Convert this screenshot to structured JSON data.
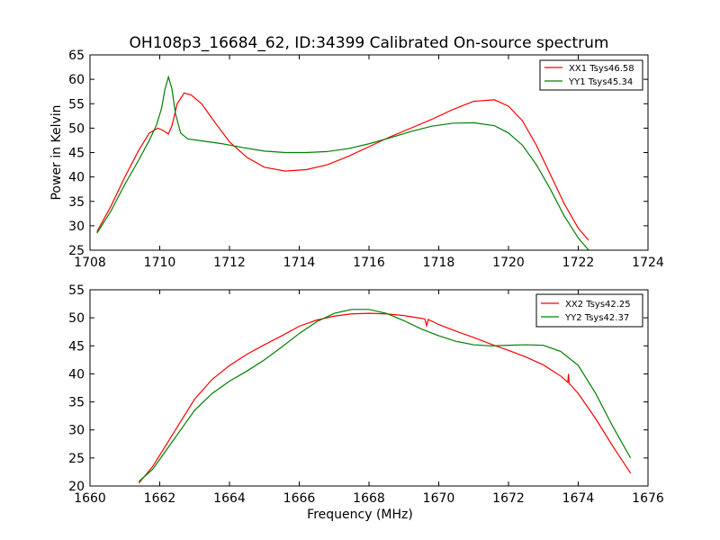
{
  "figure": {
    "title": "OH108p3_16684_62, ID:34399 Calibrated On-source spectrum"
  },
  "chart_data": [
    {
      "type": "line",
      "title": "OH108p3_16684_62, ID:34399 Calibrated On-source spectrum",
      "ylabel": "Power in Kelvin",
      "xlabel": "",
      "xlim": [
        1708,
        1724
      ],
      "ylim": [
        25,
        65
      ],
      "xticks": [
        1708,
        1710,
        1712,
        1714,
        1716,
        1718,
        1720,
        1722,
        1724
      ],
      "yticks": [
        25,
        30,
        35,
        40,
        45,
        50,
        55,
        60,
        65
      ],
      "grid": false,
      "legend": "top-right",
      "series": [
        {
          "name": "XX1 Tsys46.58",
          "color": "#ff0000",
          "x": [
            1708.2,
            1708.6,
            1709.0,
            1709.4,
            1709.7,
            1709.95,
            1710.1,
            1710.25,
            1710.35,
            1710.5,
            1710.7,
            1710.9,
            1711.2,
            1711.6,
            1712.0,
            1712.5,
            1713.0,
            1713.6,
            1714.2,
            1714.8,
            1715.4,
            1716.0,
            1716.6,
            1717.2,
            1717.8,
            1718.4,
            1719.0,
            1719.6,
            1720.0,
            1720.4,
            1720.8,
            1721.2,
            1721.6,
            1722.0,
            1722.3
          ],
          "y": [
            28.8,
            34.0,
            40.0,
            45.5,
            49.0,
            50.0,
            49.5,
            48.8,
            50.5,
            55.0,
            57.2,
            56.8,
            55.0,
            51.0,
            47.2,
            44.0,
            42.0,
            41.2,
            41.5,
            42.5,
            44.2,
            46.2,
            48.2,
            50.0,
            51.8,
            53.8,
            55.5,
            55.8,
            54.5,
            51.5,
            46.5,
            40.5,
            34.5,
            29.5,
            27.0
          ]
        },
        {
          "name": "YY1 Tsys45.34",
          "color": "#008000",
          "x": [
            1708.2,
            1708.6,
            1709.0,
            1709.4,
            1709.7,
            1709.9,
            1710.05,
            1710.15,
            1710.25,
            1710.35,
            1710.45,
            1710.6,
            1710.8,
            1711.2,
            1711.8,
            1712.4,
            1713.0,
            1713.6,
            1714.2,
            1714.8,
            1715.4,
            1716.0,
            1716.6,
            1717.2,
            1717.8,
            1718.4,
            1719.0,
            1719.6,
            1720.0,
            1720.4,
            1720.8,
            1721.2,
            1721.6,
            1722.0,
            1722.3
          ],
          "y": [
            28.5,
            33.0,
            38.5,
            43.5,
            47.5,
            50.5,
            54.0,
            58.0,
            60.5,
            58.0,
            53.0,
            49.0,
            47.8,
            47.4,
            46.8,
            46.0,
            45.3,
            45.0,
            45.0,
            45.2,
            45.8,
            46.8,
            48.0,
            49.3,
            50.4,
            51.0,
            51.1,
            50.5,
            49.0,
            46.5,
            42.5,
            37.5,
            32.0,
            27.5,
            25.0
          ]
        }
      ]
    },
    {
      "type": "line",
      "title": "",
      "ylabel": "",
      "xlabel": "Frequency (MHz)",
      "xlim": [
        1660,
        1676
      ],
      "ylim": [
        20,
        55
      ],
      "xticks": [
        1660,
        1662,
        1664,
        1666,
        1668,
        1670,
        1672,
        1674,
        1676
      ],
      "yticks": [
        20,
        25,
        30,
        35,
        40,
        45,
        50,
        55
      ],
      "grid": false,
      "legend": "top-right",
      "series": [
        {
          "name": "XX2 Tsys42.25",
          "color": "#ff0000",
          "x": [
            1661.4,
            1661.8,
            1662.2,
            1662.6,
            1663.0,
            1663.5,
            1664.0,
            1664.5,
            1665.0,
            1665.5,
            1666.0,
            1666.5,
            1667.0,
            1667.5,
            1668.0,
            1668.5,
            1669.0,
            1669.5,
            1669.6,
            1669.65,
            1669.7,
            1670.0,
            1670.5,
            1671.0,
            1671.5,
            1672.0,
            1672.5,
            1673.0,
            1673.5,
            1673.7,
            1673.72,
            1673.74,
            1674.0,
            1674.5,
            1675.0,
            1675.5
          ],
          "y": [
            20.5,
            23.5,
            27.5,
            31.5,
            35.5,
            39.0,
            41.5,
            43.5,
            45.2,
            46.8,
            48.5,
            49.6,
            50.3,
            50.7,
            50.8,
            50.7,
            50.4,
            49.9,
            49.8,
            48.6,
            49.7,
            48.8,
            47.6,
            46.5,
            45.3,
            44.2,
            43.0,
            41.6,
            39.6,
            38.5,
            40.0,
            38.3,
            36.5,
            32.0,
            27.0,
            22.3
          ]
        },
        {
          "name": "YY2 Tsys42.37",
          "color": "#008000",
          "x": [
            1661.4,
            1661.8,
            1662.2,
            1662.6,
            1663.0,
            1663.5,
            1664.0,
            1664.5,
            1665.0,
            1665.5,
            1666.0,
            1666.5,
            1667.0,
            1667.5,
            1668.0,
            1668.5,
            1669.0,
            1669.5,
            1670.0,
            1670.5,
            1671.0,
            1671.5,
            1672.0,
            1672.5,
            1673.0,
            1673.5,
            1674.0,
            1674.5,
            1675.0,
            1675.5
          ],
          "y": [
            20.8,
            23.0,
            26.5,
            30.0,
            33.5,
            36.5,
            38.7,
            40.5,
            42.5,
            44.8,
            47.2,
            49.3,
            50.8,
            51.5,
            51.5,
            50.8,
            49.5,
            48.0,
            46.8,
            45.8,
            45.2,
            45.0,
            45.1,
            45.2,
            45.1,
            44.0,
            41.5,
            36.5,
            30.5,
            25.0
          ]
        }
      ]
    }
  ]
}
